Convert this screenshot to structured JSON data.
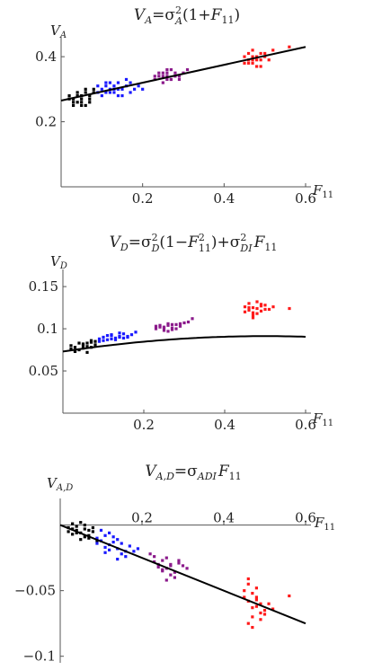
{
  "chart_data": [
    {
      "type": "scatter",
      "title": "V_A=σ_A^2(1+F_11)",
      "title_parts": {
        "lhs": "V",
        "lhs_sub": "A",
        "eq": "=σ",
        "sup": "2",
        "sub": "A",
        "rest1": "(1+",
        "F": "F",
        "F_sub": "11",
        "close": ")"
      },
      "xlabel": "F₁₁",
      "ylabel": "V_A",
      "ylabel_parts": {
        "main": "V",
        "sub": "A"
      },
      "xlabel_parts": {
        "main": "F",
        "sub": "11"
      },
      "xlim": [
        0,
        0.6
      ],
      "ylim": [
        0.0,
        0.45
      ],
      "xticks": [
        {
          "v": 0.2,
          "label": "0.2"
        },
        {
          "v": 0.4,
          "label": "0.4"
        },
        {
          "v": 0.6,
          "label": "0.6"
        }
      ],
      "yticks": [
        {
          "v": 0.2,
          "label": "0.2"
        },
        {
          "v": 0.4,
          "label": "0.4"
        }
      ],
      "fit_line": {
        "x": [
          0.0,
          0.6
        ],
        "y": [
          0.265,
          0.43
        ]
      },
      "series": [
        {
          "color": "#000000",
          "x": [
            0.02,
            0.03,
            0.04,
            0.05,
            0.06,
            0.07,
            0.08,
            0.03,
            0.05,
            0.07,
            0.04,
            0.06,
            0.02,
            0.08,
            0.05,
            0.03,
            0.07,
            0.06,
            0.04,
            0.05
          ],
          "y": [
            0.27,
            0.26,
            0.28,
            0.27,
            0.29,
            0.28,
            0.3,
            0.25,
            0.26,
            0.27,
            0.29,
            0.25,
            0.28,
            0.29,
            0.28,
            0.27,
            0.26,
            0.3,
            0.26,
            0.25
          ]
        },
        {
          "color": "#1a1aff",
          "x": [
            0.09,
            0.1,
            0.11,
            0.12,
            0.13,
            0.14,
            0.15,
            0.16,
            0.17,
            0.1,
            0.12,
            0.14,
            0.16,
            0.11,
            0.13,
            0.15,
            0.18,
            0.19,
            0.09,
            0.12,
            0.14,
            0.17,
            0.2,
            0.11,
            0.13
          ],
          "y": [
            0.29,
            0.3,
            0.31,
            0.3,
            0.29,
            0.32,
            0.3,
            0.31,
            0.29,
            0.28,
            0.32,
            0.3,
            0.33,
            0.29,
            0.31,
            0.28,
            0.3,
            0.31,
            0.31,
            0.29,
            0.28,
            0.32,
            0.3,
            0.32,
            0.3
          ]
        },
        {
          "color": "#8b1a8b",
          "x": [
            0.23,
            0.24,
            0.25,
            0.26,
            0.27,
            0.28,
            0.29,
            0.25,
            0.26,
            0.27,
            0.24,
            0.28,
            0.3,
            0.23,
            0.26,
            0.27,
            0.25,
            0.29,
            0.26,
            0.31
          ],
          "y": [
            0.33,
            0.34,
            0.35,
            0.34,
            0.33,
            0.35,
            0.34,
            0.32,
            0.36,
            0.33,
            0.35,
            0.34,
            0.35,
            0.34,
            0.33,
            0.36,
            0.34,
            0.33,
            0.35,
            0.36
          ]
        },
        {
          "color": "#ff1a1a",
          "x": [
            0.45,
            0.46,
            0.47,
            0.48,
            0.49,
            0.5,
            0.46,
            0.47,
            0.48,
            0.45,
            0.49,
            0.5,
            0.47,
            0.46,
            0.48,
            0.51,
            0.52,
            0.56,
            0.47,
            0.49
          ],
          "y": [
            0.38,
            0.39,
            0.4,
            0.39,
            0.41,
            0.4,
            0.38,
            0.42,
            0.37,
            0.4,
            0.39,
            0.41,
            0.39,
            0.41,
            0.4,
            0.39,
            0.42,
            0.43,
            0.38,
            0.37
          ]
        }
      ]
    },
    {
      "type": "scatter",
      "title": "V_D=σ_D^2(1−F_11^2)+σ_DI^2 F_11",
      "title_parts": {
        "lhs": "V",
        "lhs_sub": "D",
        "eq": "=σ",
        "sup1": "2",
        "sub1": "D",
        "mid1": "(1−",
        "F": "F",
        "F_sup": "2",
        "F_sub": "11",
        "mid2": ")+σ",
        "sup2": "2",
        "sub2": "DI",
        "F2_sub": "11"
      },
      "xlabel": "F₁₁",
      "ylabel": "V_D",
      "ylabel_parts": {
        "main": "V",
        "sub": "D"
      },
      "xlabel_parts": {
        "main": "F",
        "sub": "11"
      },
      "xlim": [
        0,
        0.6
      ],
      "ylim": [
        0.0,
        0.165
      ],
      "xticks": [
        {
          "v": 0.2,
          "label": "0.2"
        },
        {
          "v": 0.4,
          "label": "0.4"
        },
        {
          "v": 0.6,
          "label": "0.6"
        }
      ],
      "yticks": [
        {
          "v": 0.05,
          "label": "0.05"
        },
        {
          "v": 0.1,
          "label": "0.1"
        },
        {
          "v": 0.15,
          "label": "0.15"
        }
      ],
      "fit_curve": {
        "a": 0.073,
        "b": 0.21
      },
      "series": [
        {
          "color": "#000000",
          "x": [
            0.02,
            0.03,
            0.04,
            0.05,
            0.06,
            0.07,
            0.08,
            0.03,
            0.05,
            0.07,
            0.04,
            0.06,
            0.02,
            0.08,
            0.05,
            0.03,
            0.07,
            0.06
          ],
          "y": [
            0.08,
            0.078,
            0.075,
            0.082,
            0.079,
            0.084,
            0.081,
            0.073,
            0.077,
            0.086,
            0.083,
            0.072,
            0.076,
            0.085,
            0.08,
            0.074,
            0.078,
            0.083
          ]
        },
        {
          "color": "#1a1aff",
          "x": [
            0.09,
            0.1,
            0.11,
            0.12,
            0.13,
            0.14,
            0.15,
            0.16,
            0.17,
            0.1,
            0.12,
            0.14,
            0.16,
            0.11,
            0.13,
            0.15,
            0.18,
            0.09,
            0.12,
            0.14
          ],
          "y": [
            0.088,
            0.09,
            0.087,
            0.092,
            0.089,
            0.091,
            0.094,
            0.09,
            0.093,
            0.086,
            0.088,
            0.095,
            0.091,
            0.092,
            0.087,
            0.089,
            0.096,
            0.085,
            0.093,
            0.09
          ]
        },
        {
          "color": "#8b1a8b",
          "x": [
            0.23,
            0.24,
            0.25,
            0.26,
            0.27,
            0.28,
            0.29,
            0.25,
            0.26,
            0.27,
            0.24,
            0.28,
            0.3,
            0.23,
            0.26,
            0.27,
            0.25,
            0.29,
            0.31,
            0.32
          ],
          "y": [
            0.1,
            0.102,
            0.101,
            0.104,
            0.099,
            0.105,
            0.103,
            0.098,
            0.106,
            0.101,
            0.104,
            0.1,
            0.107,
            0.103,
            0.097,
            0.105,
            0.102,
            0.106,
            0.108,
            0.112
          ]
        },
        {
          "color": "#ff1a1a",
          "x": [
            0.45,
            0.46,
            0.47,
            0.48,
            0.49,
            0.5,
            0.46,
            0.47,
            0.48,
            0.45,
            0.49,
            0.5,
            0.47,
            0.46,
            0.48,
            0.51,
            0.52,
            0.47,
            0.49,
            0.56
          ],
          "y": [
            0.12,
            0.122,
            0.125,
            0.118,
            0.127,
            0.123,
            0.13,
            0.116,
            0.124,
            0.126,
            0.121,
            0.128,
            0.119,
            0.125,
            0.132,
            0.123,
            0.126,
            0.113,
            0.129,
            0.124
          ]
        }
      ]
    },
    {
      "type": "scatter",
      "title": "V_A,D=σ_ADI F_11",
      "title_parts": {
        "lhs": "V",
        "lhs_sub": "A,D",
        "eq": "=σ",
        "sub": "ADI",
        "F": "F",
        "F_sub": "11"
      },
      "xlabel": "F₁₁",
      "ylabel": "V_A,D",
      "ylabel_parts": {
        "main": "V",
        "sub": "A,D"
      },
      "xlabel_parts": {
        "main": "F",
        "sub": "11"
      },
      "xlim": [
        0,
        0.6
      ],
      "ylim": [
        -0.105,
        0.01
      ],
      "xticks": [
        {
          "v": 0.2,
          "label": "0.2"
        },
        {
          "v": 0.4,
          "label": "0.4"
        },
        {
          "v": 0.6,
          "label": "0.6"
        }
      ],
      "yticks": [
        {
          "v": -0.05,
          "label": "−0.05"
        },
        {
          "v": -0.1,
          "label": "−0.1"
        }
      ],
      "fit_line": {
        "x": [
          0.0,
          0.6
        ],
        "y": [
          0.0,
          -0.075
        ]
      },
      "series": [
        {
          "color": "#000000",
          "x": [
            0.02,
            0.03,
            0.04,
            0.05,
            0.06,
            0.07,
            0.08,
            0.03,
            0.05,
            0.07,
            0.04,
            0.06,
            0.02,
            0.08,
            0.05,
            0.03,
            0.07,
            0.06,
            0.09,
            0.04
          ],
          "y": [
            -0.002,
            0.001,
            -0.004,
            -0.006,
            -0.003,
            -0.008,
            -0.005,
            -0.007,
            0.002,
            -0.01,
            -0.001,
            -0.009,
            -0.005,
            -0.002,
            -0.011,
            -0.003,
            -0.004,
            0.0,
            -0.012,
            -0.006
          ]
        },
        {
          "color": "#1a1aff",
          "x": [
            0.09,
            0.1,
            0.11,
            0.12,
            0.13,
            0.14,
            0.15,
            0.16,
            0.17,
            0.1,
            0.12,
            0.14,
            0.16,
            0.11,
            0.13,
            0.15,
            0.18,
            0.09,
            0.12,
            0.14,
            0.19,
            0.11
          ],
          "y": [
            -0.01,
            -0.012,
            -0.008,
            -0.015,
            -0.013,
            -0.018,
            -0.014,
            -0.02,
            -0.016,
            -0.004,
            -0.019,
            -0.011,
            -0.024,
            -0.017,
            -0.009,
            -0.022,
            -0.02,
            -0.014,
            -0.006,
            -0.026,
            -0.018,
            -0.021
          ]
        },
        {
          "color": "#8b1a8b",
          "x": [
            0.23,
            0.24,
            0.25,
            0.26,
            0.27,
            0.28,
            0.29,
            0.25,
            0.26,
            0.27,
            0.24,
            0.28,
            0.3,
            0.23,
            0.26,
            0.27,
            0.25,
            0.29,
            0.31,
            0.22
          ],
          "y": [
            -0.028,
            -0.03,
            -0.027,
            -0.033,
            -0.031,
            -0.036,
            -0.029,
            -0.034,
            -0.025,
            -0.038,
            -0.032,
            -0.04,
            -0.031,
            -0.024,
            -0.042,
            -0.03,
            -0.035,
            -0.027,
            -0.033,
            -0.022
          ]
        },
        {
          "color": "#ff1a1a",
          "x": [
            0.45,
            0.46,
            0.47,
            0.48,
            0.49,
            0.5,
            0.46,
            0.47,
            0.48,
            0.45,
            0.49,
            0.5,
            0.47,
            0.46,
            0.48,
            0.51,
            0.52,
            0.47,
            0.49,
            0.56,
            0.46,
            0.48
          ],
          "y": [
            -0.055,
            -0.058,
            -0.052,
            -0.062,
            -0.06,
            -0.065,
            -0.045,
            -0.07,
            -0.057,
            -0.05,
            -0.072,
            -0.068,
            -0.063,
            -0.075,
            -0.055,
            -0.06,
            -0.064,
            -0.078,
            -0.067,
            -0.054,
            -0.041,
            -0.048
          ]
        }
      ]
    }
  ]
}
